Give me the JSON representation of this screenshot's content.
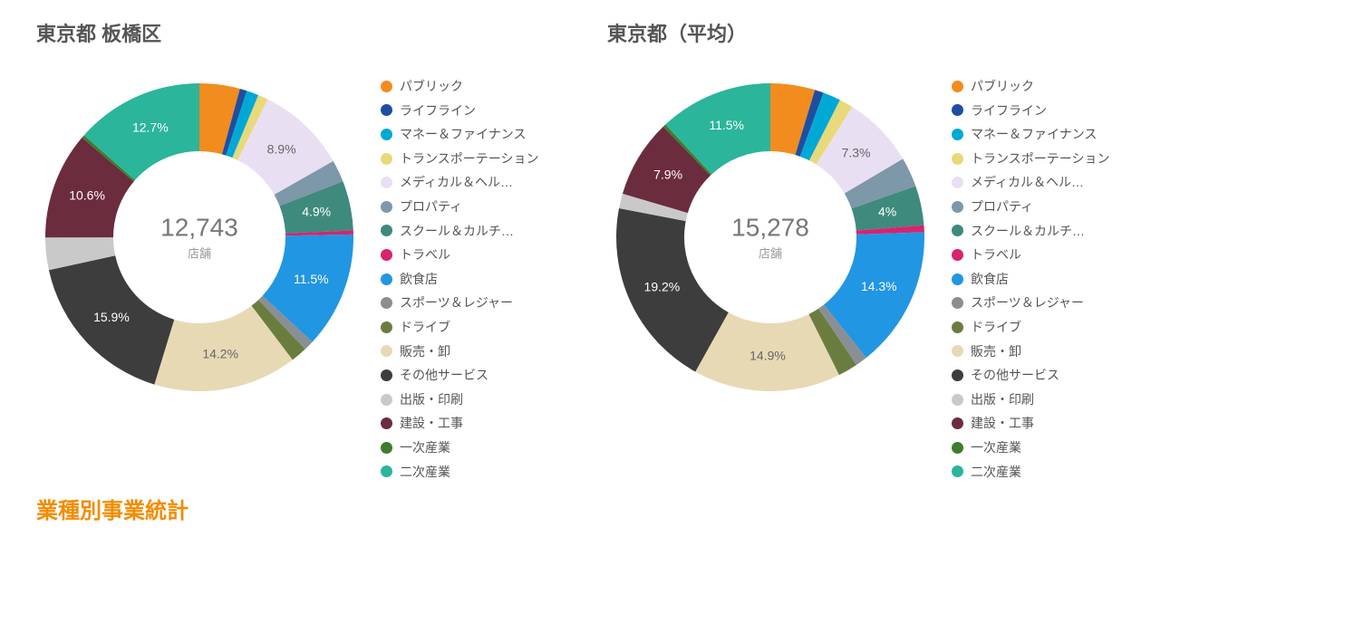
{
  "footer_title": "業種別事業統計",
  "center_unit": "店舗",
  "legend_categories": [
    {
      "label": "パブリック",
      "color": "#f28c1e"
    },
    {
      "label": "ライフライン",
      "color": "#1f4ea1"
    },
    {
      "label": "マネー＆ファイナンス",
      "color": "#00a8d6"
    },
    {
      "label": "トランスポーテーション",
      "color": "#e8d97a"
    },
    {
      "label": "メディカル＆ヘル…",
      "color": "#e9dff2"
    },
    {
      "label": "プロパティ",
      "color": "#7d98a8"
    },
    {
      "label": "スクール＆カルチ…",
      "color": "#3e8a7d"
    },
    {
      "label": "トラベル",
      "color": "#d6246f"
    },
    {
      "label": "飲食店",
      "color": "#2196e3"
    },
    {
      "label": "スポーツ＆レジャー",
      "color": "#8a8f94"
    },
    {
      "label": "ドライブ",
      "color": "#6b7d3e"
    },
    {
      "label": "販売・卸",
      "color": "#e8d9b5"
    },
    {
      "label": "その他サービス",
      "color": "#3d3d3d"
    },
    {
      "label": "出版・印刷",
      "color": "#c9c9c9"
    },
    {
      "label": "建設・工事",
      "color": "#6b2c3e"
    },
    {
      "label": "一次産業",
      "color": "#3e7d2c"
    },
    {
      "label": "二次産業",
      "color": "#2bb59b"
    }
  ],
  "charts": [
    {
      "title": "東京都 板橋区",
      "center_value": "12,743",
      "slices": [
        {
          "cat": 0,
          "value": 4.0,
          "show_pct": false
        },
        {
          "cat": 1,
          "value": 0.7,
          "show_pct": false
        },
        {
          "cat": 2,
          "value": 1.2,
          "show_pct": false
        },
        {
          "cat": 3,
          "value": 1.0,
          "show_pct": false
        },
        {
          "cat": 4,
          "value": 8.9,
          "show_pct": true,
          "label_dark": true
        },
        {
          "cat": 5,
          "value": 2.2,
          "show_pct": false
        },
        {
          "cat": 6,
          "value": 4.9,
          "show_pct": true
        },
        {
          "cat": 7,
          "value": 0.4,
          "show_pct": false
        },
        {
          "cat": 8,
          "value": 11.5,
          "show_pct": true
        },
        {
          "cat": 9,
          "value": 1.0,
          "show_pct": false
        },
        {
          "cat": 10,
          "value": 1.6,
          "show_pct": false
        },
        {
          "cat": 11,
          "value": 14.2,
          "show_pct": true,
          "label_dark": true
        },
        {
          "cat": 12,
          "value": 15.9,
          "show_pct": true
        },
        {
          "cat": 13,
          "value": 3.2,
          "show_pct": false
        },
        {
          "cat": 14,
          "value": 10.6,
          "show_pct": true
        },
        {
          "cat": 15,
          "value": 0.3,
          "show_pct": false
        },
        {
          "cat": 16,
          "value": 12.7,
          "show_pct": true
        }
      ]
    },
    {
      "title": "東京都（平均）",
      "center_value": "15,278",
      "slices": [
        {
          "cat": 0,
          "value": 4.5,
          "show_pct": false
        },
        {
          "cat": 1,
          "value": 0.9,
          "show_pct": false
        },
        {
          "cat": 2,
          "value": 1.8,
          "show_pct": false
        },
        {
          "cat": 3,
          "value": 1.4,
          "show_pct": false
        },
        {
          "cat": 4,
          "value": 7.3,
          "show_pct": true,
          "label_dark": true
        },
        {
          "cat": 5,
          "value": 3.0,
          "show_pct": false
        },
        {
          "cat": 6,
          "value": 4.0,
          "show_pct": true
        },
        {
          "cat": 7,
          "value": 0.7,
          "show_pct": false
        },
        {
          "cat": 8,
          "value": 14.3,
          "show_pct": true
        },
        {
          "cat": 9,
          "value": 1.2,
          "show_pct": false
        },
        {
          "cat": 10,
          "value": 2.0,
          "show_pct": false
        },
        {
          "cat": 11,
          "value": 14.9,
          "show_pct": true,
          "label_dark": true
        },
        {
          "cat": 12,
          "value": 19.2,
          "show_pct": true
        },
        {
          "cat": 13,
          "value": 1.5,
          "show_pct": false
        },
        {
          "cat": 14,
          "value": 7.9,
          "show_pct": true
        },
        {
          "cat": 15,
          "value": 0.3,
          "show_pct": false
        },
        {
          "cat": 16,
          "value": 11.5,
          "show_pct": true
        }
      ]
    }
  ],
  "donut": {
    "outer_radius": 170,
    "inner_radius": 95,
    "start_angle_deg": -90,
    "label_radius": 132,
    "gap_deg": 0
  }
}
